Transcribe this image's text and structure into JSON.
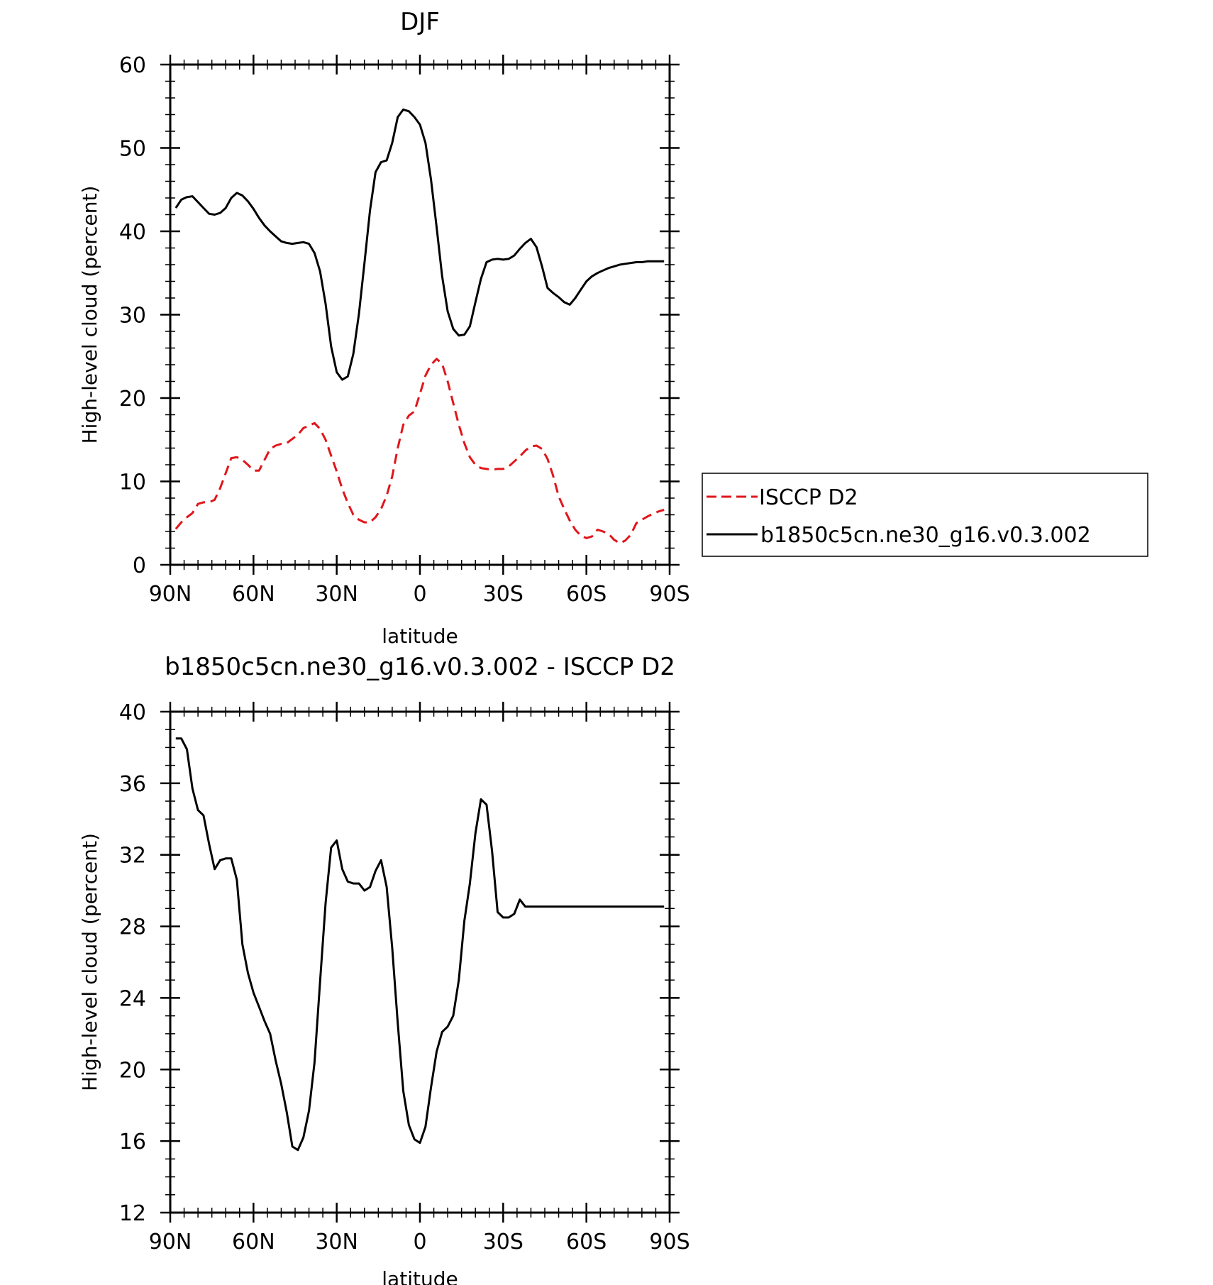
{
  "chart_data": [
    {
      "type": "line",
      "title": "DJF",
      "xlabel": "latitude",
      "ylabel": "High-level cloud (percent)",
      "x_direction": "north-to-south",
      "xlim": [
        90,
        -90
      ],
      "ylim": [
        0,
        60
      ],
      "x_ticks": [
        90,
        60,
        30,
        0,
        -30,
        -60,
        -90
      ],
      "x_tick_labels": [
        "90N",
        "60N",
        "30N",
        "0",
        "30S",
        "60S",
        "90S"
      ],
      "y_ticks": [
        0,
        10,
        20,
        30,
        40,
        50,
        60
      ],
      "y_tick_labels": [
        "0",
        "10",
        "20",
        "30",
        "40",
        "50",
        "60"
      ],
      "grid": false,
      "legend_position": "right, outside the plot",
      "series": [
        {
          "name": "ISCCP D2",
          "color": "#e0161b",
          "dash": "dashed",
          "x": [
            88,
            86,
            84,
            82,
            80,
            78,
            76,
            74,
            72,
            70,
            68,
            66,
            64,
            62,
            60,
            58,
            56,
            54,
            52,
            50,
            48,
            46,
            44,
            42,
            40,
            38,
            36,
            34,
            32,
            30,
            28,
            26,
            24,
            22,
            20,
            18,
            16,
            14,
            12,
            10,
            8,
            6,
            4,
            2,
            0,
            -2,
            -4,
            -6,
            -8,
            -10,
            -12,
            -14,
            -16,
            -18,
            -20,
            -22,
            -24,
            -26,
            -28,
            -30,
            -32,
            -34,
            -36,
            -38,
            -40,
            -42,
            -44,
            -46,
            -48,
            -50,
            -52,
            -54,
            -56,
            -58,
            -60,
            -62,
            -64,
            -66,
            -68,
            -70,
            -72,
            -74,
            -76,
            -78,
            -80,
            -82,
            -84,
            -86,
            -88
          ],
          "y": [
            4.3,
            5.1,
            5.7,
            6.2,
            7.3,
            7.5,
            7.5,
            7.8,
            9.2,
            11.0,
            12.8,
            12.9,
            12.6,
            12.0,
            11.3,
            11.3,
            12.6,
            13.9,
            14.3,
            14.5,
            14.6,
            15.1,
            15.6,
            16.4,
            16.7,
            17.0,
            16.3,
            15.0,
            13.1,
            11.2,
            9.1,
            7.4,
            6.0,
            5.4,
            5.1,
            5.1,
            5.7,
            6.7,
            8.3,
            10.6,
            14.0,
            16.8,
            17.9,
            18.4,
            20.5,
            22.7,
            24.0,
            24.7,
            24.1,
            22.0,
            19.4,
            16.8,
            14.6,
            12.9,
            12.0,
            11.6,
            11.5,
            11.4,
            11.5,
            11.5,
            11.8,
            12.4,
            13.0,
            13.7,
            14.2,
            14.3,
            13.9,
            12.7,
            10.7,
            8.2,
            6.7,
            5.3,
            4.2,
            3.5,
            3.2,
            3.4,
            4.2,
            4.0,
            3.7,
            3.0,
            2.6,
            2.9,
            3.6,
            5.0,
            5.4,
            5.8,
            6.1,
            6.4,
            6.6
          ]
        },
        {
          "name": "b1850c5cn.ne30_g16.v0.3.002",
          "color": "#000000",
          "dash": "solid",
          "x": [
            88,
            86,
            84,
            82,
            80,
            78,
            76,
            74,
            72,
            70,
            68,
            66,
            64,
            62,
            60,
            58,
            56,
            54,
            52,
            50,
            48,
            46,
            44,
            42,
            40,
            38,
            36,
            34,
            32,
            30,
            28,
            26,
            24,
            22,
            20,
            18,
            16,
            14,
            12,
            10,
            8,
            6,
            4,
            2,
            0,
            -2,
            -4,
            -6,
            -8,
            -10,
            -12,
            -14,
            -16,
            -18,
            -20,
            -22,
            -24,
            -26,
            -28,
            -30,
            -32,
            -34,
            -36,
            -38,
            -40,
            -42,
            -44,
            -46,
            -48,
            -50,
            -52,
            -54,
            -56,
            -58,
            -60,
            -62,
            -64,
            -66,
            -68,
            -70,
            -72,
            -74,
            -76,
            -78,
            -80,
            -82,
            -84,
            -86,
            -88
          ],
          "y": [
            42.8,
            43.8,
            44.1,
            44.2,
            43.5,
            42.8,
            42.1,
            42.0,
            42.2,
            42.8,
            44.0,
            44.6,
            44.3,
            43.6,
            42.7,
            41.6,
            40.7,
            40.0,
            39.4,
            38.8,
            38.6,
            38.5,
            38.6,
            38.7,
            38.5,
            37.4,
            35.2,
            31.3,
            26.2,
            23.1,
            22.2,
            22.6,
            25.3,
            30.1,
            36.2,
            42.5,
            47.1,
            48.3,
            48.5,
            50.6,
            53.7,
            54.6,
            54.4,
            53.7,
            52.8,
            50.6,
            46.2,
            40.5,
            34.6,
            30.4,
            28.3,
            27.5,
            27.6,
            28.6,
            31.5,
            34.3,
            36.3,
            36.6,
            36.7,
            36.6,
            36.7,
            37.1,
            37.9,
            38.6,
            39.1,
            38.1,
            35.8,
            33.2,
            32.6,
            32.1,
            31.5,
            31.2,
            32.0,
            33.0,
            34.0,
            34.6,
            35.0,
            35.3,
            35.6,
            35.8,
            36.0,
            36.1,
            36.2,
            36.3,
            36.3,
            36.4,
            36.4,
            36.4,
            36.4
          ]
        }
      ],
      "plot_window_note": "Series drawn from 88N to 88S."
    },
    {
      "type": "line",
      "title": "b1850c5cn.ne30_g16.v0.3.002 - ISCCP D2",
      "xlabel": "latitude",
      "ylabel": "High-level cloud (percent)",
      "x_direction": "north-to-south",
      "xlim": [
        90,
        -90
      ],
      "ylim": [
        12,
        40
      ],
      "x_ticks": [
        90,
        60,
        30,
        0,
        -30,
        -60,
        -90
      ],
      "x_tick_labels": [
        "90N",
        "60N",
        "30N",
        "0",
        "30S",
        "60S",
        "90S"
      ],
      "y_ticks": [
        12,
        16,
        20,
        24,
        28,
        32,
        36,
        40
      ],
      "y_tick_labels": [
        "12",
        "16",
        "20",
        "24",
        "28",
        "32",
        "36",
        "40"
      ],
      "grid": false,
      "series": [
        {
          "color": "#000000",
          "dash": "solid",
          "x": [
            88,
            86,
            84,
            82,
            80,
            78,
            76,
            74,
            72,
            70,
            68,
            66,
            64,
            62,
            60,
            58,
            56,
            54,
            52,
            50,
            48,
            46,
            44,
            42,
            40,
            38,
            36,
            34,
            32,
            30,
            28,
            26,
            24,
            22,
            20,
            18,
            16,
            14,
            12,
            10,
            8,
            6,
            4,
            2,
            0,
            -2,
            -4,
            -6,
            -8,
            -10,
            -12,
            -14,
            -16,
            -18,
            -20,
            -22,
            -24,
            -26,
            -28,
            -30,
            -32,
            -34,
            -36,
            -38,
            -40,
            -42,
            -44,
            -46,
            -48,
            -50,
            -52,
            -54,
            -56,
            -58,
            -60,
            -62,
            -64,
            -66,
            -68,
            -70,
            -72,
            -74,
            -76,
            -78,
            -80,
            -82,
            -84,
            -86,
            -88
          ],
          "y": [
            38.5,
            38.5,
            37.9,
            35.7,
            34.5,
            34.2,
            32.6,
            31.2,
            31.7,
            31.8,
            31.8,
            30.6,
            27.0,
            25.4,
            24.3,
            23.5,
            22.7,
            22.0,
            20.5,
            19.2,
            17.6,
            15.7,
            15.5,
            16.2,
            17.7,
            20.4,
            24.9,
            29.3,
            32.4,
            32.8,
            31.2,
            30.5,
            30.4,
            30.4,
            30.0,
            30.2,
            31.1,
            31.7,
            30.2,
            26.8,
            22.6,
            18.8,
            16.9,
            16.1,
            15.9,
            16.8,
            19.0,
            21.0,
            22.1,
            22.4,
            23.0,
            25.0,
            28.3,
            30.4,
            33.2,
            35.1,
            34.8,
            32.2,
            28.8,
            28.5,
            28.5,
            28.7,
            29.5,
            29.1,
            29.1,
            29.1,
            29.1,
            29.1,
            29.1,
            29.1,
            29.1,
            29.1,
            29.1,
            29.1,
            29.1,
            29.1,
            29.1,
            29.1,
            29.1,
            29.1,
            29.1,
            29.1,
            29.1,
            29.1,
            29.1,
            29.1,
            29.1,
            29.1,
            29.1
          ]
        }
      ]
    }
  ]
}
